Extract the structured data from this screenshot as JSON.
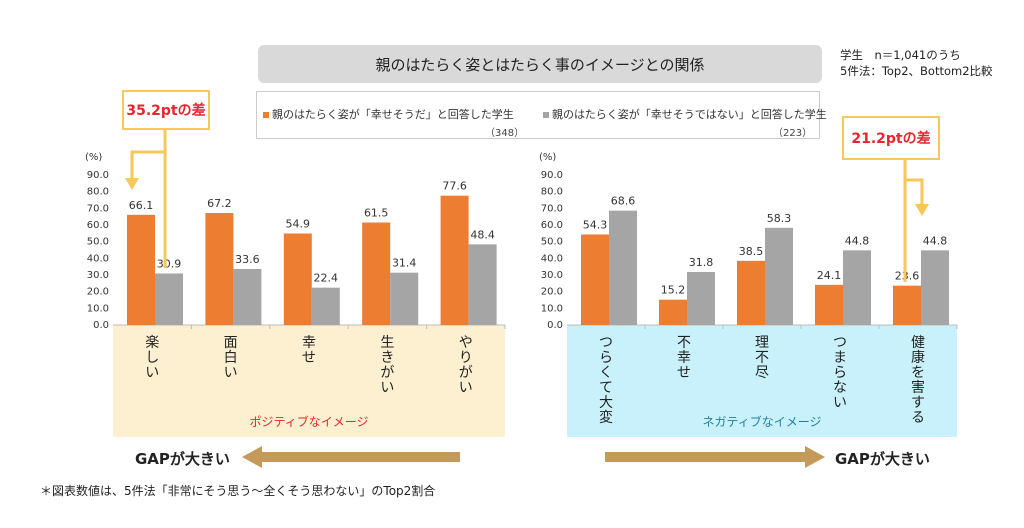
{
  "title": "親のはたらく姿とはたらく事のイメージとの関係",
  "legend": {
    "orange": "親のはたらく姿が「幸せそうだ」と回答した学生",
    "orange_n": "（348）",
    "gray": "親のはたらく姿が「幸せそうではない」と回答した学生",
    "gray_n": "（223）"
  },
  "note": {
    "line1": "学生　n＝1,041のうち",
    "line2": "5件法：Top2、Bottom2比較"
  },
  "callouts": {
    "left": "35.2ptの差",
    "right": "21.2ptの差"
  },
  "gap_left": "GAPが大きい",
  "gap_right": "GAPが大きい",
  "footnote": "＊図表数値は、5件法「非常にそう思う～全くそう思わない」のTop2割合",
  "colors": {
    "orange": "#ed7d31",
    "gray": "#a5a5a5",
    "positive_bg": "#fdf0d0",
    "negative_bg": "#c9f1fb",
    "arrow": "#c49a5a"
  },
  "chart_data": [
    {
      "type": "bar",
      "ylabel": "(%)",
      "ylim": [
        0,
        90
      ],
      "yticks": [
        "0.0",
        "10.0",
        "20.0",
        "30.0",
        "40.0",
        "50.0",
        "60.0",
        "70.0",
        "80.0",
        "90.0"
      ],
      "categories": [
        "楽しい",
        "面白い",
        "幸せ",
        "生きがい",
        "やりがい"
      ],
      "band_label": "ポジティブなイメージ",
      "series": [
        {
          "name": "幸せそうだ",
          "values": [
            66.1,
            67.2,
            54.9,
            61.5,
            77.6
          ]
        },
        {
          "name": "幸せそうではない",
          "values": [
            30.9,
            33.6,
            22.4,
            31.4,
            48.4
          ]
        }
      ]
    },
    {
      "type": "bar",
      "ylabel": "(%)",
      "ylim": [
        0,
        90
      ],
      "yticks": [
        "0.0",
        "10.0",
        "20.0",
        "30.0",
        "40.0",
        "50.0",
        "60.0",
        "70.0",
        "80.0",
        "90.0"
      ],
      "categories": [
        "つらくて大変",
        "不幸せ",
        "理不尽",
        "つまらない",
        "健康を害する"
      ],
      "band_label": "ネガティブなイメージ",
      "series": [
        {
          "name": "幸せそうだ",
          "values": [
            54.3,
            15.2,
            38.5,
            24.1,
            23.6
          ]
        },
        {
          "name": "幸せそうではない",
          "values": [
            68.6,
            31.8,
            58.3,
            44.8,
            44.8
          ]
        }
      ]
    }
  ]
}
